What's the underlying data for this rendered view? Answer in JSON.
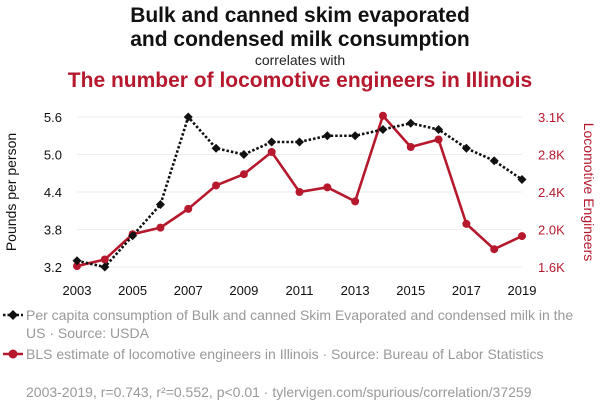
{
  "chart_data": {
    "type": "line",
    "title": "Bulk and canned skim evaporated and condensed milk consumption",
    "title_line1": "Bulk and canned skim evaporated",
    "title_line2": "and condensed milk consumption",
    "connector": "correlates with",
    "subtitle": "The number of locomotive engineers in Illinois",
    "x": [
      2003,
      2004,
      2005,
      2006,
      2007,
      2008,
      2009,
      2010,
      2011,
      2012,
      2013,
      2014,
      2015,
      2016,
      2017,
      2018,
      2019
    ],
    "x_tick_labels": [
      "2003",
      "2005",
      "2007",
      "2009",
      "2011",
      "2013",
      "2015",
      "2017",
      "2019"
    ],
    "xlim": [
      2003,
      2019
    ],
    "y_left": {
      "label": "Pounds per person",
      "ticks": [
        "3.2",
        "3.8",
        "4.4",
        "5.0",
        "5.6"
      ],
      "range": [
        3.2,
        5.6
      ]
    },
    "y_right": {
      "label": "Locomotive Engineers",
      "ticks": [
        "1.6K",
        "2.0K",
        "2.4K",
        "2.8K",
        "3.1K"
      ],
      "tick_values": [
        1600,
        2000,
        2400,
        2800,
        3100
      ]
    },
    "series": [
      {
        "name": "Per capita consumption of Bulk and canned Skim Evaporated and condensed milk in the US · Source: USDA",
        "axis": "left",
        "color": "#111111",
        "style": "dotted",
        "marker": "diamond",
        "values": [
          3.3,
          3.2,
          3.7,
          4.2,
          5.6,
          5.1,
          5.0,
          5.2,
          5.2,
          5.3,
          5.3,
          5.4,
          5.5,
          5.4,
          5.1,
          4.9,
          4.6
        ]
      },
      {
        "name": "BLS estimate of locomotive engineers in Illinois · Source: Bureau of Labor Statistics",
        "axis": "right",
        "color": "#b6192d",
        "style": "solid",
        "marker": "circle",
        "values": [
          1610,
          1680,
          1950,
          2020,
          2220,
          2470,
          2590,
          2820,
          2400,
          2450,
          2300,
          3110,
          2860,
          2920,
          2060,
          1790,
          1930
        ]
      }
    ],
    "grid": true,
    "legend_placement": "bottom"
  },
  "footer": "2003-2019, r=0.743, r²=0.552, p<0.01 · tylervigen.com/spurious/correlation/37259"
}
